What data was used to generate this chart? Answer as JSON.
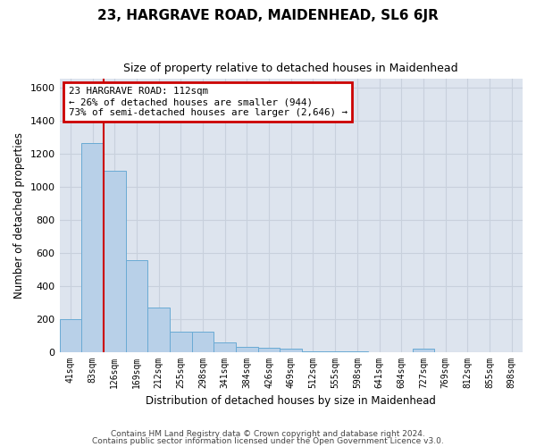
{
  "title": "23, HARGRAVE ROAD, MAIDENHEAD, SL6 6JR",
  "subtitle": "Size of property relative to detached houses in Maidenhead",
  "xlabel": "Distribution of detached houses by size in Maidenhead",
  "ylabel": "Number of detached properties",
  "bar_labels": [
    "41sqm",
    "83sqm",
    "126sqm",
    "169sqm",
    "212sqm",
    "255sqm",
    "298sqm",
    "341sqm",
    "384sqm",
    "426sqm",
    "469sqm",
    "512sqm",
    "555sqm",
    "598sqm",
    "641sqm",
    "684sqm",
    "727sqm",
    "769sqm",
    "812sqm",
    "855sqm",
    "898sqm"
  ],
  "bar_values": [
    197,
    1265,
    1095,
    557,
    268,
    120,
    120,
    57,
    30,
    25,
    18,
    5,
    5,
    5,
    0,
    0,
    20,
    0,
    0,
    0,
    0
  ],
  "bar_color": "#b8d0e8",
  "bar_edge_color": "#6aaad4",
  "vline_x_idx": 1,
  "vline_color": "#cc0000",
  "annotation_text": "23 HARGRAVE ROAD: 112sqm\n← 26% of detached houses are smaller (944)\n73% of semi-detached houses are larger (2,646) →",
  "annotation_box_color": "#cc0000",
  "ylim": [
    0,
    1650
  ],
  "yticks": [
    0,
    200,
    400,
    600,
    800,
    1000,
    1200,
    1400,
    1600
  ],
  "grid_color": "#c8d0dc",
  "bg_color": "#dde4ee",
  "fig_bg_color": "#ffffff",
  "footer1": "Contains HM Land Registry data © Crown copyright and database right 2024.",
  "footer2": "Contains public sector information licensed under the Open Government Licence v3.0."
}
